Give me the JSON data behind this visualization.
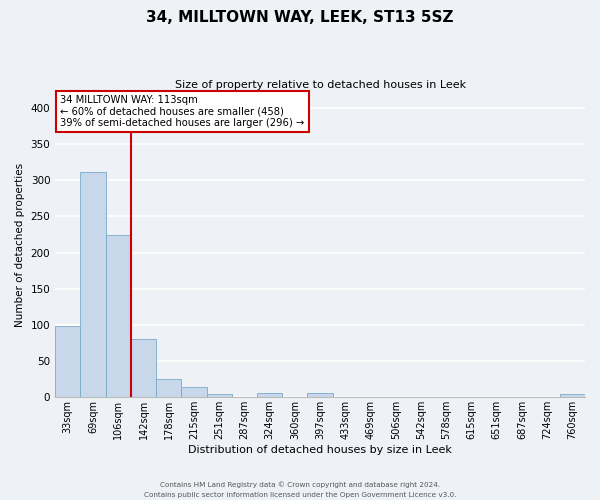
{
  "title": "34, MILLTOWN WAY, LEEK, ST13 5SZ",
  "subtitle": "Size of property relative to detached houses in Leek",
  "xlabel": "Distribution of detached houses by size in Leek",
  "ylabel": "Number of detached properties",
  "footnote1": "Contains HM Land Registry data © Crown copyright and database right 2024.",
  "footnote2": "Contains public sector information licensed under the Open Government Licence v3.0.",
  "bar_labels": [
    "33sqm",
    "69sqm",
    "106sqm",
    "142sqm",
    "178sqm",
    "215sqm",
    "251sqm",
    "287sqm",
    "324sqm",
    "360sqm",
    "397sqm",
    "433sqm",
    "469sqm",
    "506sqm",
    "542sqm",
    "578sqm",
    "615sqm",
    "651sqm",
    "687sqm",
    "724sqm",
    "760sqm"
  ],
  "bar_values": [
    99,
    312,
    224,
    80,
    25,
    14,
    5,
    0,
    6,
    0,
    6,
    0,
    0,
    0,
    0,
    0,
    0,
    0,
    0,
    0,
    4
  ],
  "bar_color": "#c8d8ea",
  "bar_edge_color": "#7aaac8",
  "ylim": [
    0,
    420
  ],
  "yticks": [
    0,
    50,
    100,
    150,
    200,
    250,
    300,
    350,
    400
  ],
  "annotation_title": "34 MILLTOWN WAY: 113sqm",
  "annotation_line1": "← 60% of detached houses are smaller (458)",
  "annotation_line2": "39% of semi-detached houses are larger (296) →",
  "vline_color": "#cc0000",
  "annotation_box_color": "#ffffff",
  "annotation_box_edgecolor": "#cc0000",
  "background_color": "#eef2f7",
  "grid_color": "#ffffff",
  "title_fontsize": 11,
  "subtitle_fontsize": 8,
  "ylabel_fontsize": 7.5,
  "xlabel_fontsize": 8,
  "tick_fontsize": 7,
  "ytick_fontsize": 7.5
}
